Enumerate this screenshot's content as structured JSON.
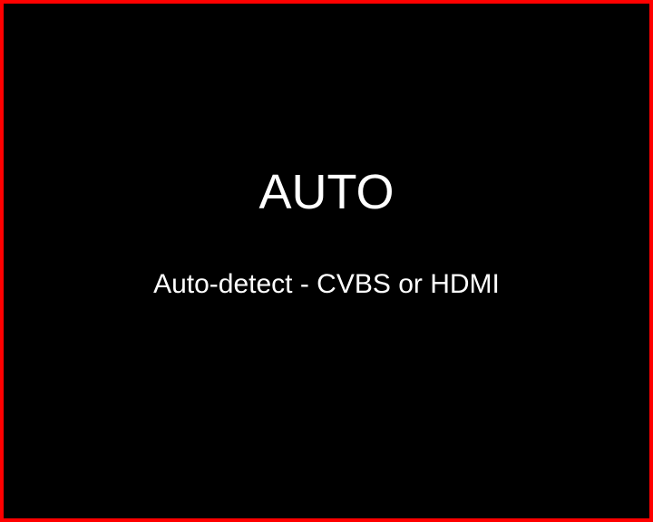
{
  "screen": {
    "title": "AUTO",
    "subtitle": "Auto-detect - CVBS or HDMI",
    "colors": {
      "background": "#000000",
      "border": "#ff0000",
      "text": "#ffffff"
    }
  }
}
